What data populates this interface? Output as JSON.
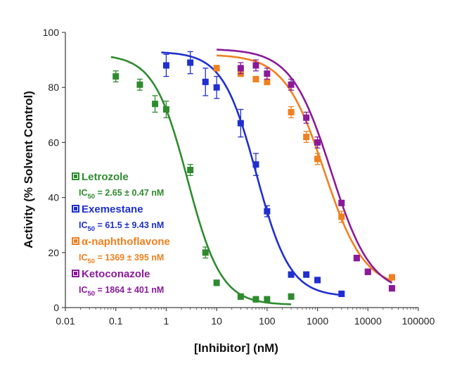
{
  "chart_data": {
    "type": "scatter",
    "xlabel": "[Inhibitor] (nM)",
    "ylabel": "Activity (% Solvent Control)",
    "xscale": "log",
    "xlim": [
      0.01,
      100000
    ],
    "ylim": [
      0,
      100
    ],
    "xticks": [
      "0.01",
      "0.1",
      "1",
      "10",
      "100",
      "1000",
      "10000",
      "100000"
    ],
    "yticks": [
      "0",
      "20",
      "40",
      "60",
      "80",
      "100"
    ],
    "grid": false,
    "legend_position": "left-middle",
    "series": [
      {
        "name": "Letrozole",
        "ic50_text": "= 2.65 ± 0.47 nM",
        "color": "#2e8b2e",
        "fit": {
          "top": 92,
          "bottom": 1,
          "ic50": 2.65,
          "hill": 1.3,
          "x_range": [
            0.08,
            300
          ]
        },
        "points": [
          {
            "x": 0.1,
            "y": 84,
            "err": 2
          },
          {
            "x": 0.3,
            "y": 81,
            "err": 2
          },
          {
            "x": 0.6,
            "y": 74,
            "err": 3
          },
          {
            "x": 1,
            "y": 72,
            "err": 3
          },
          {
            "x": 3,
            "y": 50,
            "err": 2
          },
          {
            "x": 6,
            "y": 20,
            "err": 2
          },
          {
            "x": 10,
            "y": 9,
            "err": 1
          },
          {
            "x": 30,
            "y": 4,
            "err": 1
          },
          {
            "x": 60,
            "y": 3,
            "err": 1
          },
          {
            "x": 100,
            "y": 3,
            "err": 1
          },
          {
            "x": 300,
            "y": 4,
            "err": 1
          }
        ]
      },
      {
        "name": "Exemestane",
        "ic50_text": "= 61.5 ± 9.43 nM",
        "color": "#1f2fd0",
        "fit": {
          "top": 93,
          "bottom": 4,
          "ic50": 61.5,
          "hill": 1.3,
          "x_range": [
            0.8,
            3000
          ]
        },
        "points": [
          {
            "x": 1,
            "y": 88,
            "err": 4
          },
          {
            "x": 3,
            "y": 89,
            "err": 4
          },
          {
            "x": 6,
            "y": 82,
            "err": 5
          },
          {
            "x": 10,
            "y": 80,
            "err": 4
          },
          {
            "x": 30,
            "y": 67,
            "err": 5
          },
          {
            "x": 60,
            "y": 52,
            "err": 4
          },
          {
            "x": 100,
            "y": 35,
            "err": 2
          },
          {
            "x": 300,
            "y": 12,
            "err": 1
          },
          {
            "x": 600,
            "y": 12,
            "err": 1
          },
          {
            "x": 1000,
            "y": 10,
            "err": 1
          },
          {
            "x": 3000,
            "y": 5,
            "err": 1
          }
        ]
      },
      {
        "name": "α-naphthoflavone",
        "ic50_text": "= 1369 ± 395 nM",
        "color": "#f08020",
        "fit": {
          "top": 92,
          "bottom": 7,
          "ic50": 1369,
          "hill": 1.1,
          "x_range": [
            10,
            30000
          ]
        },
        "points": [
          {
            "x": 10,
            "y": 87,
            "err": 1
          },
          {
            "x": 30,
            "y": 85,
            "err": 1
          },
          {
            "x": 60,
            "y": 83,
            "err": 1
          },
          {
            "x": 100,
            "y": 82,
            "err": 1
          },
          {
            "x": 300,
            "y": 71,
            "err": 2
          },
          {
            "x": 600,
            "y": 62,
            "err": 2
          },
          {
            "x": 1000,
            "y": 54,
            "err": 2
          },
          {
            "x": 3000,
            "y": 33,
            "err": 2
          },
          {
            "x": 6000,
            "y": 18,
            "err": 1
          },
          {
            "x": 10000,
            "y": 13,
            "err": 1
          },
          {
            "x": 30000,
            "y": 11,
            "err": 1
          }
        ]
      },
      {
        "name": "Ketoconazole",
        "ic50_text": "= 1864 ± 401 nM",
        "color": "#8a1a9a",
        "fit": {
          "top": 94,
          "bottom": 5,
          "ic50": 1864,
          "hill": 1.1,
          "x_range": [
            10,
            30000
          ]
        },
        "points": [
          {
            "x": 30,
            "y": 87,
            "err": 2
          },
          {
            "x": 60,
            "y": 88,
            "err": 2
          },
          {
            "x": 100,
            "y": 85,
            "err": 2
          },
          {
            "x": 300,
            "y": 81,
            "err": 2
          },
          {
            "x": 600,
            "y": 69,
            "err": 2
          },
          {
            "x": 1000,
            "y": 60,
            "err": 2
          },
          {
            "x": 3000,
            "y": 38,
            "err": 1
          },
          {
            "x": 6000,
            "y": 18,
            "err": 1
          },
          {
            "x": 10000,
            "y": 13,
            "err": 1
          },
          {
            "x": 30000,
            "y": 7,
            "err": 1
          }
        ]
      }
    ]
  }
}
